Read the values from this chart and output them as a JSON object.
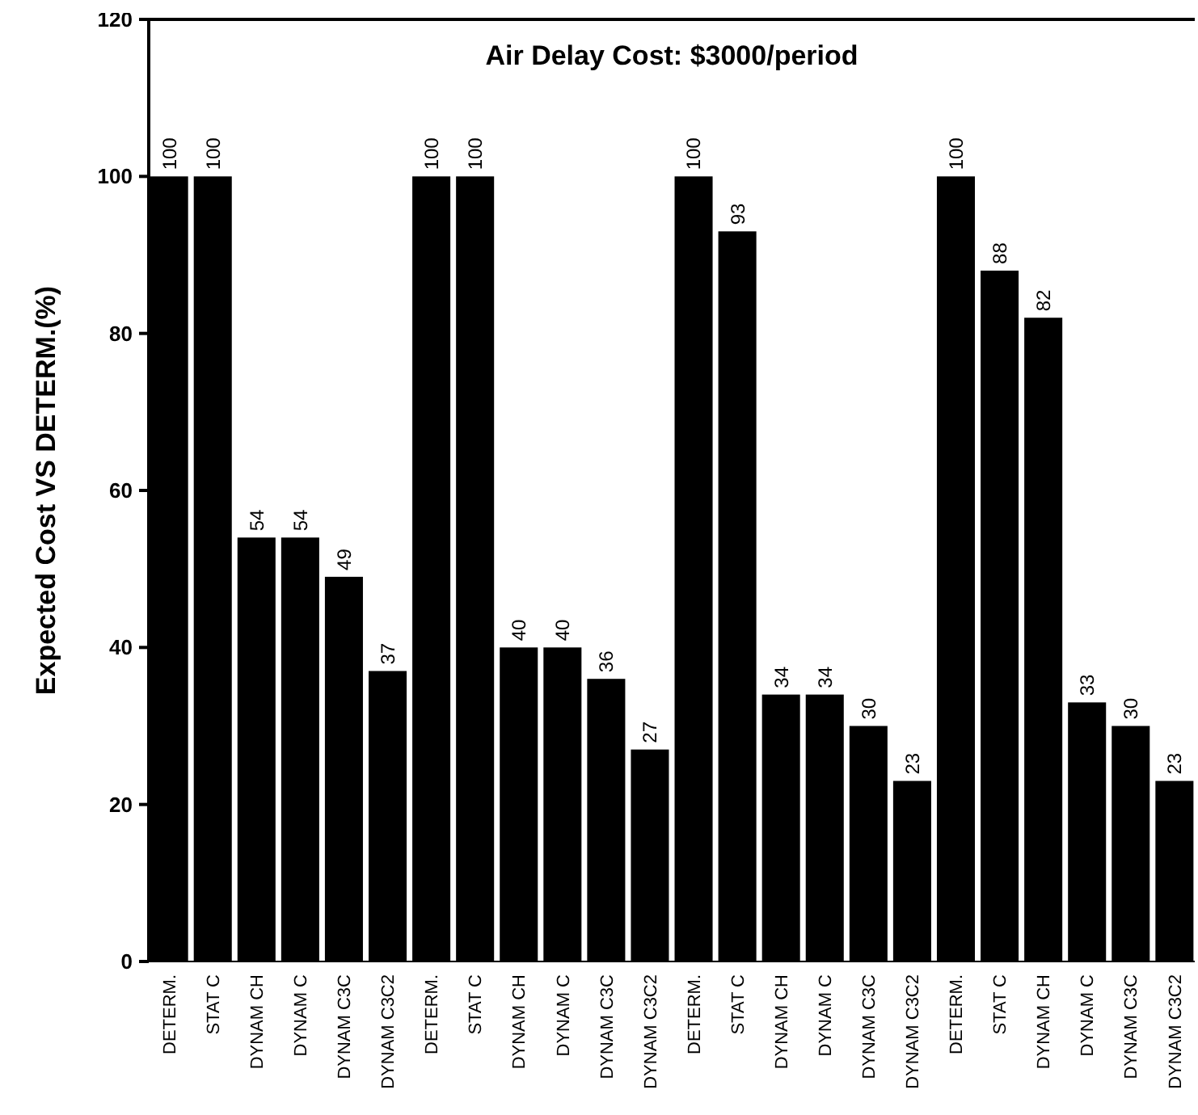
{
  "chart_data": {
    "type": "bar",
    "title": "Air Delay Cost: $3000/period",
    "ylabel": "Expected Cost VS DETERM.(%)",
    "categories": [
      "DETERM.",
      "STAT C",
      "DYNAM CH",
      "DYNAM C",
      "DYNAM C3C",
      "DYNAM C3C2",
      "DETERM.",
      "STAT C",
      "DYNAM CH",
      "DYNAM C",
      "DYNAM C3C",
      "DYNAM C3C2",
      "DETERM.",
      "STAT C",
      "DYNAM CH",
      "DYNAM C",
      "DYNAM C3C",
      "DYNAM C3C2",
      "DETERM.",
      "STAT C",
      "DYNAM CH",
      "DYNAM C",
      "DYNAM C3C",
      "DYNAM C3C2"
    ],
    "values": [
      100,
      100,
      54,
      54,
      49,
      37,
      100,
      100,
      40,
      40,
      36,
      27,
      100,
      93,
      34,
      34,
      30,
      23,
      100,
      88,
      82,
      33,
      30,
      23
    ],
    "color": "#000000",
    "ylim": [
      0,
      120
    ],
    "yticks": [
      0,
      20,
      40,
      60,
      80,
      100,
      120
    ],
    "grid": false,
    "data_labels": true
  }
}
